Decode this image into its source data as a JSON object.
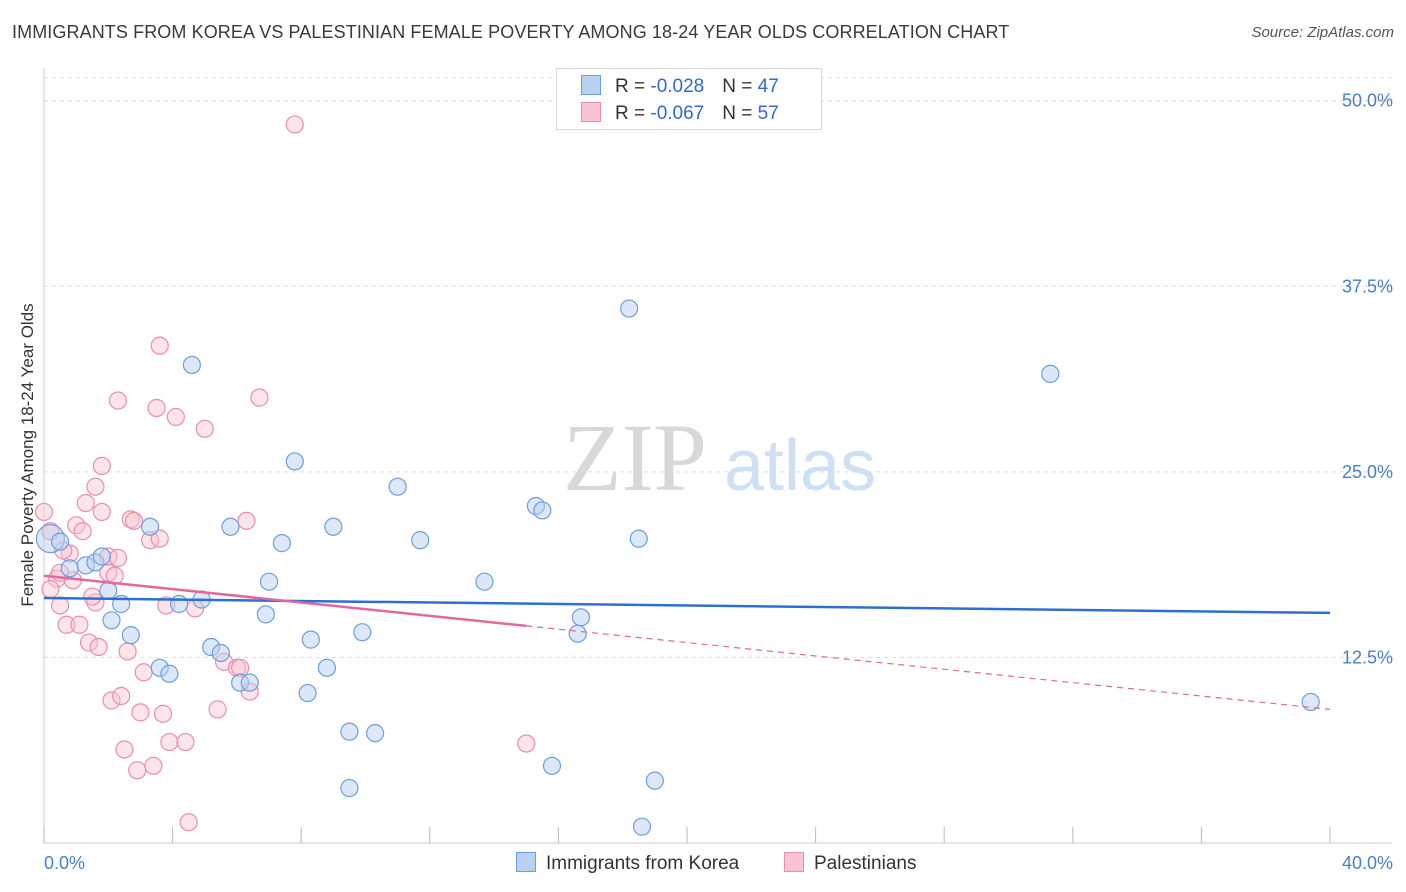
{
  "title": "IMMIGRANTS FROM KOREA VS PALESTINIAN FEMALE POVERTY AMONG 18-24 YEAR OLDS CORRELATION CHART",
  "source": "Source: ZipAtlas.com",
  "watermark": {
    "zip": "ZIP",
    "atlas": "atlas"
  },
  "legend": {
    "series1": {
      "r_label": "R = ",
      "r_value": "-0.028",
      "n_label": "N = ",
      "n_value": "47"
    },
    "series2": {
      "r_label": "R = ",
      "r_value": "-0.067",
      "n_label": "N = ",
      "n_value": "57"
    }
  },
  "chart_data": {
    "type": "scatter",
    "title": "IMMIGRANTS FROM KOREA VS PALESTINIAN FEMALE POVERTY AMONG 18-24 YEAR OLDS CORRELATION CHART",
    "xlabel": "",
    "ylabel": "Female Poverty Among 18-24 Year Olds",
    "xlim": [
      0,
      40
    ],
    "ylim": [
      0,
      52
    ],
    "x_tick_labels": [
      "0.0%",
      "40.0%"
    ],
    "y_ticks": [
      12.5,
      25.0,
      37.5,
      50.0
    ],
    "y_tick_labels": [
      "12.5%",
      "25.0%",
      "37.5%",
      "50.0%"
    ],
    "colors": {
      "korea_fill": "#b9d0f0",
      "korea_edge": "#6d9fdc",
      "korea_line": "#2d6fd0",
      "pal_fill": "#f8c3d3",
      "pal_edge": "#e98fae",
      "pal_line": "#e0689a"
    },
    "series": [
      {
        "name": "Immigrants from Korea",
        "trend": {
          "x": [
            0,
            40
          ],
          "y": [
            16.5,
            15.5
          ],
          "dashed_from": null
        },
        "points": [
          [
            0.2,
            20.5
          ],
          [
            0.5,
            20.3
          ],
          [
            0.8,
            18.5
          ],
          [
            1.3,
            18.7
          ],
          [
            1.6,
            18.9
          ],
          [
            1.8,
            19.3
          ],
          [
            2.0,
            17.0
          ],
          [
            2.1,
            15.0
          ],
          [
            2.4,
            16.1
          ],
          [
            2.7,
            14.0
          ],
          [
            3.3,
            21.3
          ],
          [
            3.6,
            11.8
          ],
          [
            3.9,
            11.4
          ],
          [
            4.2,
            16.1
          ],
          [
            4.6,
            32.2
          ],
          [
            4.9,
            16.4
          ],
          [
            5.2,
            13.2
          ],
          [
            5.5,
            12.8
          ],
          [
            5.8,
            21.3
          ],
          [
            6.1,
            10.8
          ],
          [
            6.4,
            10.8
          ],
          [
            6.9,
            15.4
          ],
          [
            7.0,
            17.6
          ],
          [
            7.4,
            20.2
          ],
          [
            7.8,
            25.7
          ],
          [
            8.2,
            10.1
          ],
          [
            8.3,
            13.7
          ],
          [
            8.8,
            11.8
          ],
          [
            9.0,
            21.3
          ],
          [
            9.5,
            7.5
          ],
          [
            9.5,
            3.7
          ],
          [
            9.9,
            14.2
          ],
          [
            10.3,
            7.4
          ],
          [
            11.0,
            24.0
          ],
          [
            11.7,
            20.4
          ],
          [
            13.7,
            17.6
          ],
          [
            15.3,
            22.7
          ],
          [
            15.5,
            22.4
          ],
          [
            15.8,
            5.2
          ],
          [
            16.6,
            14.1
          ],
          [
            16.7,
            15.2
          ],
          [
            18.2,
            36.0
          ],
          [
            18.6,
            1.1
          ],
          [
            18.5,
            20.5
          ],
          [
            19.0,
            4.2
          ],
          [
            31.3,
            31.6
          ],
          [
            39.4,
            9.5
          ]
        ]
      },
      {
        "name": "Palestinians",
        "trend": {
          "x": [
            0,
            40
          ],
          "y": [
            18.0,
            9.0
          ],
          "dashed_from": 15.0
        },
        "points": [
          [
            0.0,
            22.3
          ],
          [
            0.2,
            21.0
          ],
          [
            0.4,
            17.8
          ],
          [
            0.5,
            18.2
          ],
          [
            0.5,
            16.0
          ],
          [
            0.7,
            14.7
          ],
          [
            0.8,
            19.5
          ],
          [
            0.9,
            17.7
          ],
          [
            1.0,
            21.4
          ],
          [
            1.1,
            14.7
          ],
          [
            1.2,
            21.0
          ],
          [
            1.3,
            22.9
          ],
          [
            1.4,
            13.5
          ],
          [
            1.6,
            24.0
          ],
          [
            1.6,
            16.2
          ],
          [
            1.7,
            13.2
          ],
          [
            1.8,
            25.4
          ],
          [
            1.8,
            22.3
          ],
          [
            2.0,
            19.3
          ],
          [
            2.0,
            18.2
          ],
          [
            2.1,
            9.6
          ],
          [
            2.3,
            19.2
          ],
          [
            2.3,
            29.8
          ],
          [
            2.4,
            9.9
          ],
          [
            2.5,
            6.3
          ],
          [
            2.6,
            12.9
          ],
          [
            2.7,
            21.8
          ],
          [
            2.8,
            21.7
          ],
          [
            2.9,
            4.9
          ],
          [
            3.0,
            8.8
          ],
          [
            3.1,
            11.5
          ],
          [
            3.3,
            20.4
          ],
          [
            3.4,
            5.2
          ],
          [
            3.5,
            29.3
          ],
          [
            3.6,
            20.5
          ],
          [
            3.6,
            33.5
          ],
          [
            3.7,
            8.7
          ],
          [
            3.8,
            16.0
          ],
          [
            3.9,
            6.8
          ],
          [
            4.1,
            28.7
          ],
          [
            4.4,
            6.8
          ],
          [
            4.5,
            1.4
          ],
          [
            4.7,
            15.8
          ],
          [
            5.0,
            27.9
          ],
          [
            5.4,
            9.0
          ],
          [
            5.6,
            12.2
          ],
          [
            6.0,
            11.8
          ],
          [
            6.1,
            11.8
          ],
          [
            6.3,
            21.7
          ],
          [
            6.4,
            10.2
          ],
          [
            6.7,
            30.0
          ],
          [
            7.8,
            48.4
          ],
          [
            15.0,
            6.7
          ],
          [
            0.2,
            17.1
          ],
          [
            0.6,
            19.7
          ],
          [
            1.5,
            16.6
          ],
          [
            2.2,
            18.0
          ]
        ]
      }
    ]
  },
  "bottom_legend": {
    "series1": "Immigrants from Korea",
    "series2": "Palestinians"
  }
}
